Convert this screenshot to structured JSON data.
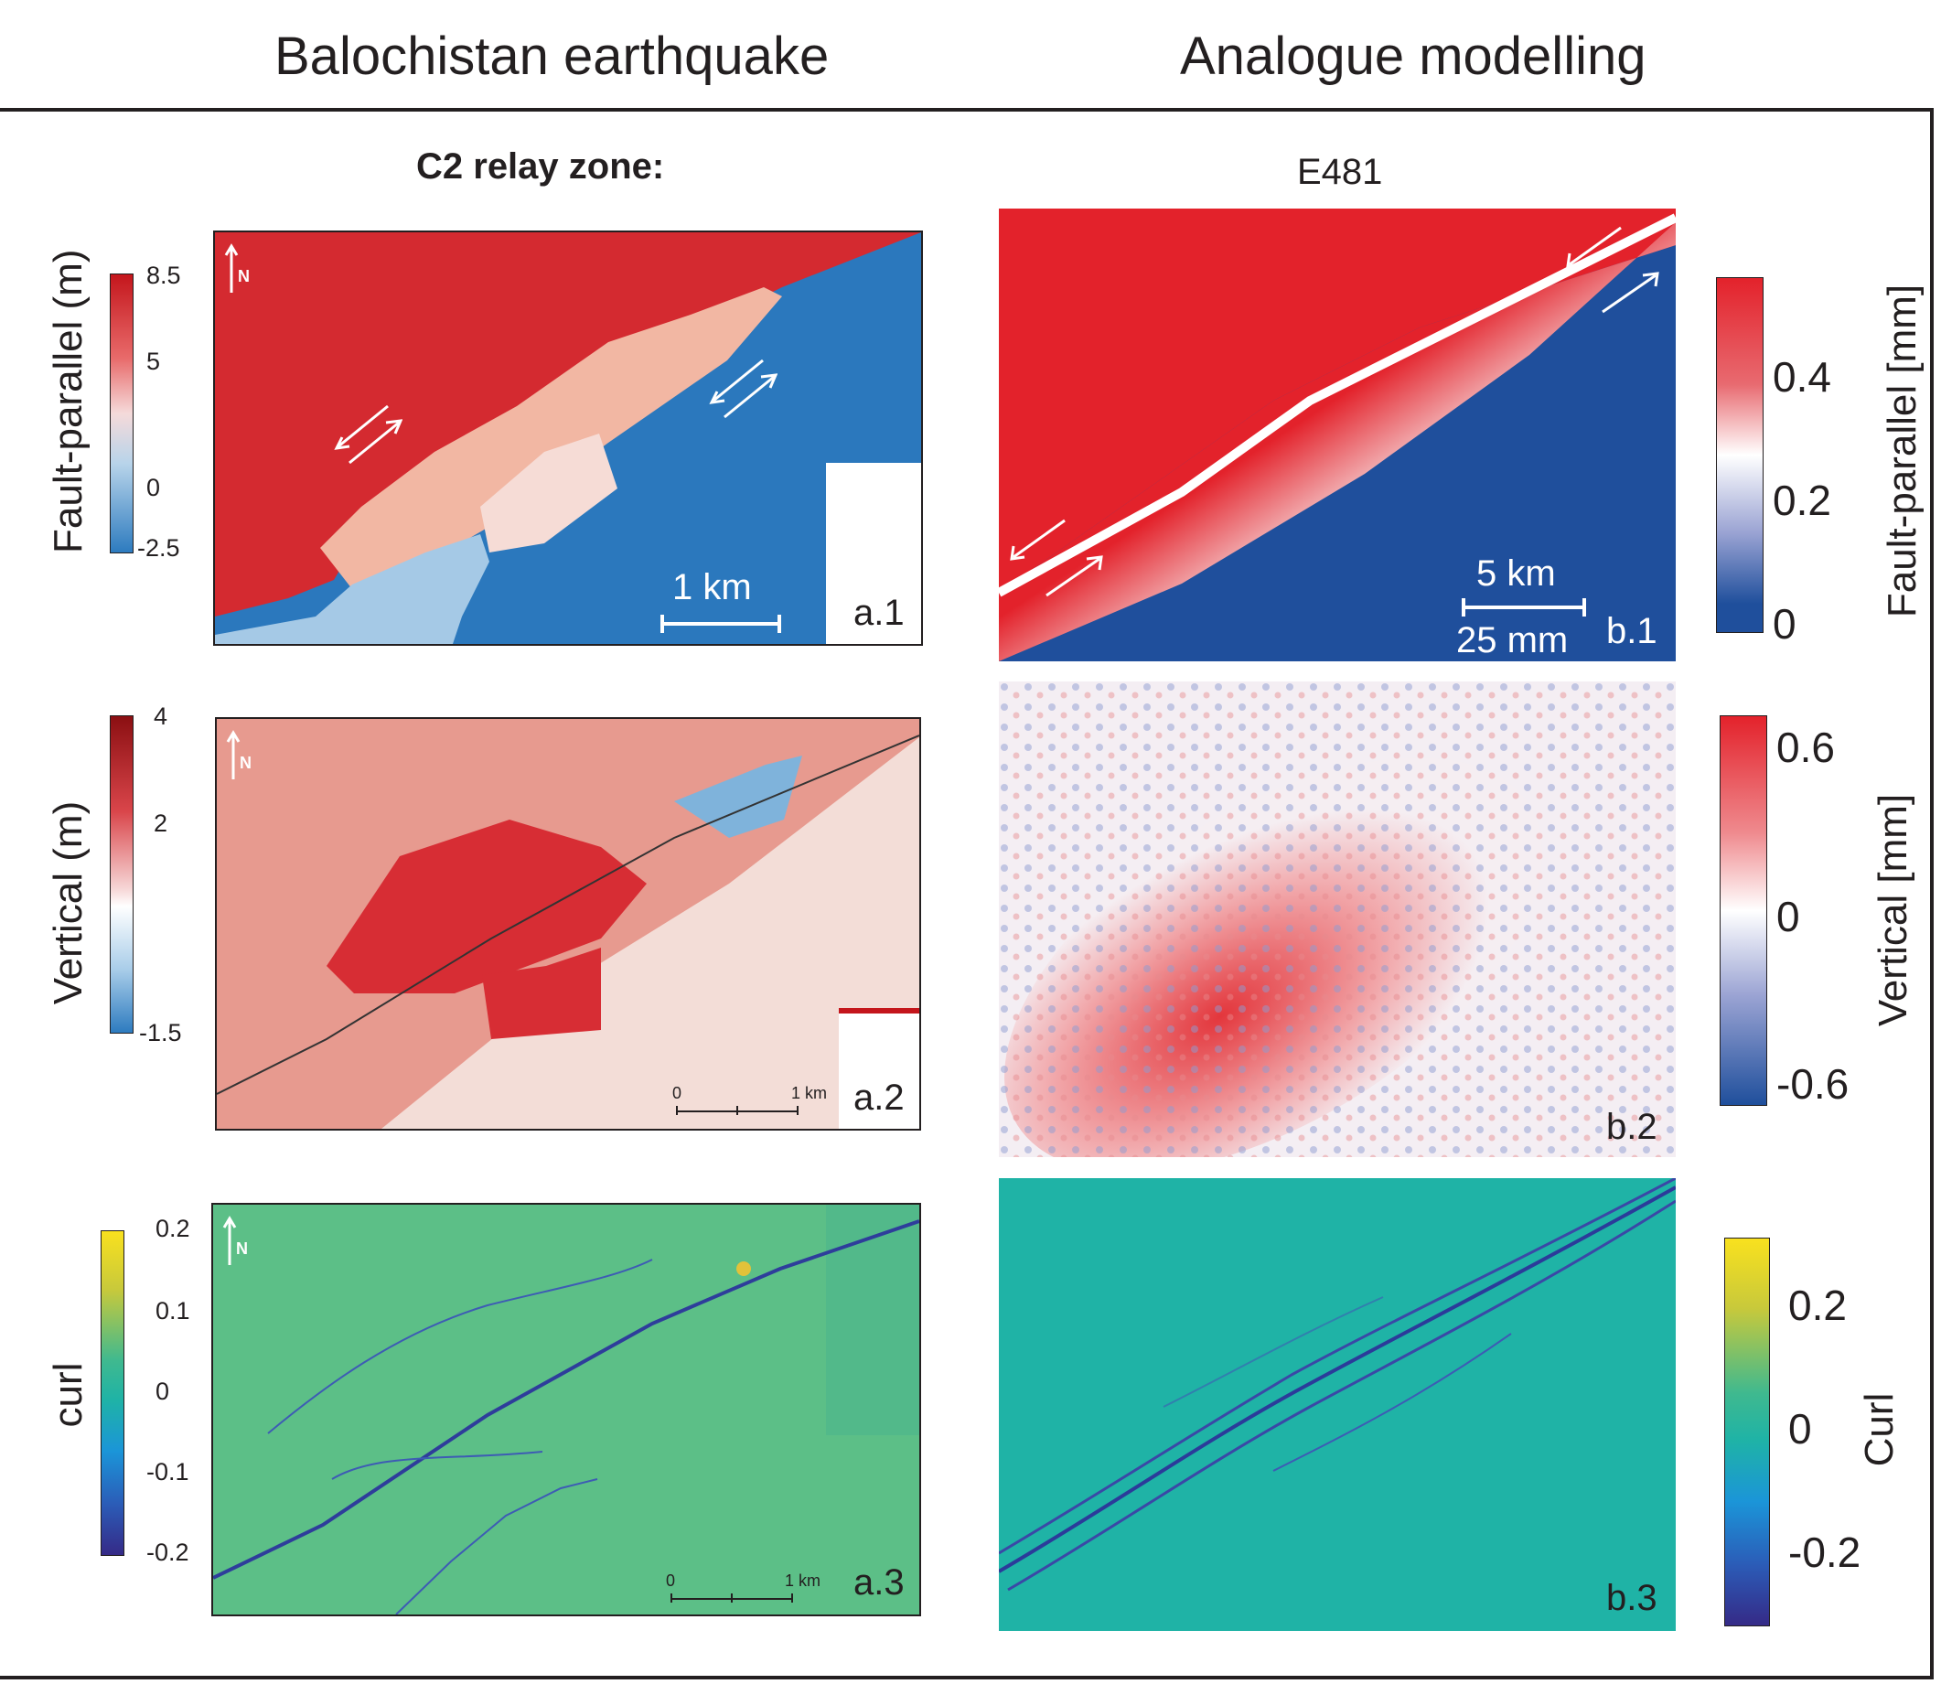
{
  "headers": {
    "left": "Balochistan earthquake",
    "right": "Analogue modelling"
  },
  "subtitles": {
    "left": "C2 relay zone:",
    "right": "E481"
  },
  "colors": {
    "red": "#e3222b",
    "blue": "#1f4f9c",
    "fieldblue": "#2d7bbf",
    "teal": "#1fb3a6",
    "frame": "#231f20"
  },
  "rows": [
    {
      "left_label": "Fault-parallel (m)",
      "left_ticks": [
        "8.5",
        "5",
        "0",
        "-2.5"
      ],
      "left_panel_tag": "a.1",
      "left_scale": "1 km",
      "north": "N",
      "right_panel_tag": "b.1",
      "right_scale_top": "5 km",
      "right_scale_bottom": "25 mm",
      "right_label": "Fault-parallel [mm]",
      "right_ticks": [
        "0.4",
        "0.2",
        "0"
      ]
    },
    {
      "left_label": "Vertical (m)",
      "left_ticks": [
        "4",
        "2",
        "-1.5"
      ],
      "left_panel_tag": "a.2",
      "left_scale_start": "0",
      "left_scale_end": "1 km",
      "north": "N",
      "right_panel_tag": "b.2",
      "right_label": "Vertical [mm]",
      "right_ticks": [
        "0.6",
        "0",
        "-0.6"
      ]
    },
    {
      "left_label": "curl",
      "left_ticks": [
        "0.2",
        "0.1",
        "0",
        "-0.1",
        "-0.2"
      ],
      "left_panel_tag": "a.3",
      "left_scale_start": "0",
      "left_scale_end": "1 km",
      "north": "N",
      "right_panel_tag": "b.3",
      "right_label": "Curl",
      "right_ticks": [
        "0.2",
        "0",
        "-0.2"
      ]
    }
  ]
}
